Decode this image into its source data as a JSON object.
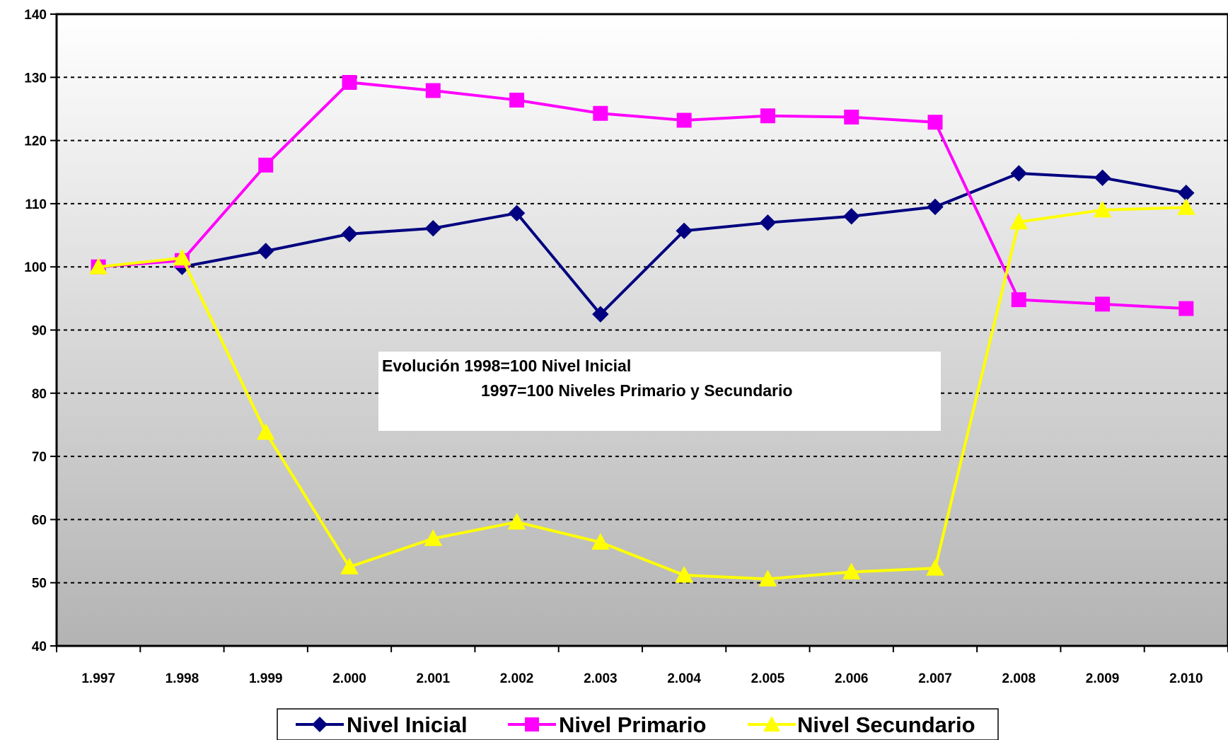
{
  "chart_data": {
    "type": "line",
    "x": [
      "1.997",
      "1.998",
      "1.999",
      "2.000",
      "2.001",
      "2.002",
      "2.003",
      "2.004",
      "2.005",
      "2.006",
      "2.007",
      "2.008",
      "2.009",
      "2.010"
    ],
    "ylim": [
      40,
      140
    ],
    "yticks": [
      "40",
      "50",
      "60",
      "70",
      "80",
      "90",
      "100",
      "110",
      "120",
      "130",
      "140"
    ],
    "grid": "horizontal dotted",
    "legend_position": "bottom",
    "series": [
      {
        "name": "Nivel Inicial",
        "color": "#000080",
        "marker": "diamond",
        "values": [
          null,
          100,
          102.5,
          105.2,
          106.1,
          108.5,
          92.5,
          105.7,
          107.0,
          108.0,
          109.5,
          114.8,
          114.1,
          111.7
        ]
      },
      {
        "name": "Nivel Primario",
        "color": "#FF00FF",
        "marker": "square",
        "values": [
          100,
          101.0,
          116.1,
          129.2,
          127.9,
          126.4,
          124.3,
          123.2,
          123.9,
          123.7,
          122.9,
          94.8,
          94.1,
          93.4
        ]
      },
      {
        "name": "Nivel Secundario",
        "color": "#FFFF00",
        "marker": "triangle",
        "values": [
          100,
          101.4,
          73.8,
          52.5,
          57.0,
          59.6,
          56.4,
          51.2,
          50.6,
          51.7,
          52.3,
          107.1,
          109.0,
          109.4
        ]
      }
    ],
    "annotation": {
      "line1": "Evolución 1998=100 Nivel Inicial",
      "line2": "1997=100 Niveles Primario y Secundario"
    },
    "colors": {
      "plot_gradient_top": "#ffffff",
      "plot_gradient_bottom": "#b3b3b3"
    }
  }
}
